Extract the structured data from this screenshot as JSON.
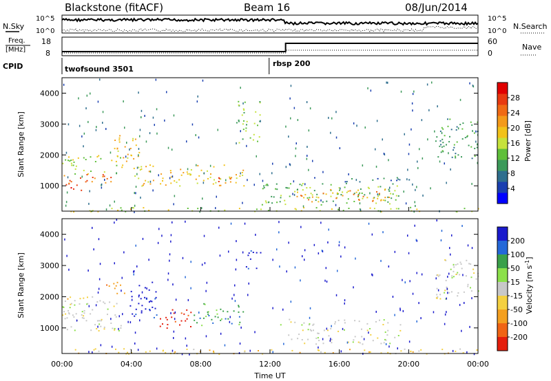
{
  "header": {
    "title_left": "Blackstone (fitACF)",
    "title_center": "Beam 16",
    "title_right": "08/Jun/2014"
  },
  "nsky_panel": {
    "left_label": "N.Sky",
    "left_top_tick": "10^5",
    "left_bottom_tick": "10^0",
    "right_top_tick": "10^5",
    "right_bottom_tick": "10^0",
    "right_label": "N.Search"
  },
  "freq_panel": {
    "left_label_line1": "Freq.",
    "left_label_line2": "[MHz]",
    "left_top_tick": "18",
    "left_bottom_tick": "8",
    "right_top_tick": "60",
    "right_bottom_tick": "0",
    "right_label": "Nave"
  },
  "cpid": {
    "label": "CPID",
    "segments": [
      {
        "name": "twofsound 3501",
        "start_hour": 0
      },
      {
        "name": "rbsp 200",
        "start_hour": 11.95
      }
    ]
  },
  "chart_data": [
    {
      "type": "heatmap",
      "name": "power",
      "ylabel": "Slant Range [km]",
      "ylim": [
        180,
        4500
      ],
      "yticks": [
        "1000",
        "2000",
        "3000",
        "4000"
      ],
      "xlim_hours": [
        0,
        24
      ],
      "colorbar": {
        "label": "Power [dB]",
        "ticks": [
          "4",
          "8",
          "12",
          "16",
          "20",
          "24",
          "28"
        ],
        "colors": [
          "#0000ff",
          "#1a3fb0",
          "#2e6e8e",
          "#3c9a5a",
          "#5fbf3a",
          "#c6e23c",
          "#f2c21a",
          "#f49a1a",
          "#f06a14",
          "#e83a10",
          "#e00000"
        ]
      },
      "echo_regions": [
        {
          "t0": 0.0,
          "t1": 1.6,
          "r0": 850,
          "r1": 1100,
          "level": 10
        },
        {
          "t0": 0.0,
          "t1": 3.0,
          "r0": 1100,
          "r1": 1400,
          "level": 8
        },
        {
          "t0": 0.0,
          "t1": 3.5,
          "r0": 1400,
          "r1": 2000,
          "level": 5
        },
        {
          "t0": 3.0,
          "t1": 4.5,
          "r0": 1800,
          "r1": 2700,
          "level": 6
        },
        {
          "t0": 4.0,
          "t1": 10.5,
          "r0": 1000,
          "r1": 1700,
          "level": 6
        },
        {
          "t0": 8.5,
          "t1": 10.0,
          "r0": 1100,
          "r1": 1400,
          "level": 8
        },
        {
          "t0": 10.0,
          "t1": 11.5,
          "r0": 2400,
          "r1": 3800,
          "level": 4
        },
        {
          "t0": 11.5,
          "t1": 19.5,
          "r0": 400,
          "r1": 1100,
          "level": 4
        },
        {
          "t0": 13.5,
          "t1": 19.0,
          "r0": 500,
          "r1": 900,
          "level": 7
        },
        {
          "t0": 14.5,
          "t1": 20.0,
          "r0": 1150,
          "r1": 1300,
          "level": 2
        },
        {
          "t0": 21.5,
          "t1": 24.0,
          "r0": 1900,
          "r1": 3200,
          "level": 3
        },
        {
          "t0": 0.0,
          "t1": 24.0,
          "r0": 180,
          "r1": 320,
          "level": 5
        }
      ]
    },
    {
      "type": "heatmap",
      "name": "velocity",
      "ylabel": "Slant Range [km]",
      "ylim": [
        180,
        4500
      ],
      "yticks": [
        "1000",
        "2000",
        "3000",
        "4000"
      ],
      "xlim_hours": [
        0,
        24
      ],
      "xticks": [
        "00:00",
        "04:00",
        "08:00",
        "12:00",
        "16:00",
        "20:00",
        "00:00"
      ],
      "xlabel": "Time UT",
      "colorbar": {
        "label": "Velocity [m s-1]",
        "label_main": "Velocity [m s",
        "label_exp": "-1",
        "label_close": "]",
        "ticks": [
          "200",
          "100",
          "50",
          "15",
          "-15",
          "-50",
          "-100",
          "-200"
        ],
        "colors": [
          "#1a1acc",
          "#2468d8",
          "#3aa04a",
          "#8ce04a",
          "#c8c8c8",
          "#f4d040",
          "#f4a020",
          "#f06414",
          "#e41e0c"
        ]
      },
      "echo_regions": [
        {
          "t0": 0.0,
          "t1": 3.6,
          "r0": 900,
          "r1": 1900,
          "cls": 4
        },
        {
          "t0": 0.0,
          "t1": 2.0,
          "r0": 1900,
          "r1": 2100,
          "cls": 5
        },
        {
          "t0": 2.5,
          "t1": 3.8,
          "r0": 2100,
          "r1": 2500,
          "cls": 6
        },
        {
          "t0": 3.8,
          "t1": 5.5,
          "r0": 1300,
          "r1": 2500,
          "cls": 0
        },
        {
          "t0": 5.5,
          "t1": 7.5,
          "r0": 1000,
          "r1": 1600,
          "cls": 8
        },
        {
          "t0": 7.5,
          "t1": 10.5,
          "r0": 1100,
          "r1": 1800,
          "cls": 2
        },
        {
          "t0": 10.5,
          "t1": 11.5,
          "r0": 2900,
          "r1": 3500,
          "cls": 0
        },
        {
          "t0": 13.0,
          "t1": 19.5,
          "r0": 500,
          "r1": 1000,
          "cls": 4
        },
        {
          "t0": 12.0,
          "t1": 20.0,
          "r0": 1100,
          "r1": 1300,
          "cls": 4
        },
        {
          "t0": 21.5,
          "t1": 24.0,
          "r0": 1900,
          "r1": 3200,
          "cls": 4
        },
        {
          "t0": 0.0,
          "t1": 24.0,
          "r0": 180,
          "r1": 350,
          "cls": 5
        }
      ]
    }
  ]
}
